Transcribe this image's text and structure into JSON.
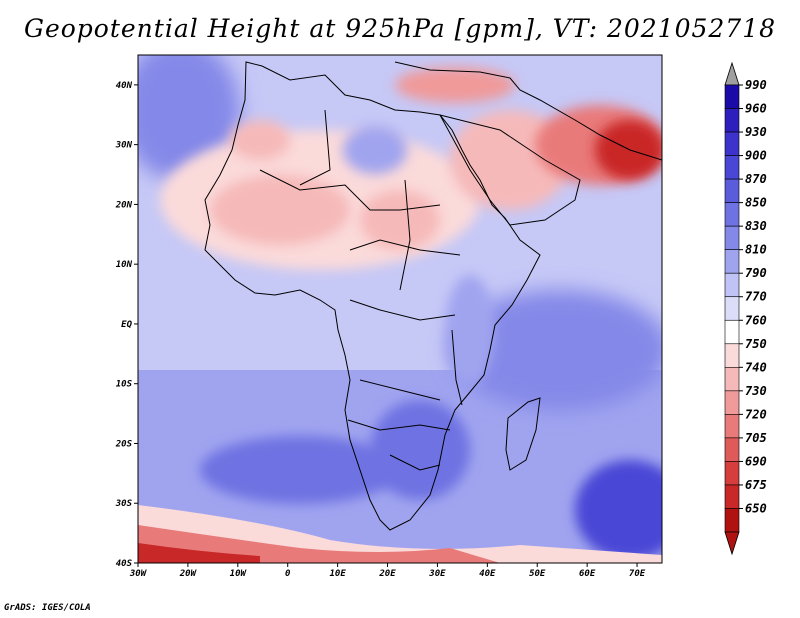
{
  "title": "Geopotential Height at 925hPa [gpm], VT: 2021052718",
  "footer": "GrADS: IGES/COLA",
  "map": {
    "lon_range": [
      -30,
      75
    ],
    "lat_range": [
      -40,
      45
    ],
    "lat_labels": [
      "40N",
      "30N",
      "20N",
      "10N",
      "EQ",
      "10S",
      "20S",
      "30S",
      "40S"
    ],
    "lat_values": [
      40,
      30,
      20,
      10,
      0,
      -10,
      -20,
      -30,
      -40
    ],
    "lon_labels": [
      "30W",
      "20W",
      "10W",
      "0",
      "10E",
      "20E",
      "30E",
      "40E",
      "50E",
      "60E",
      "70E"
    ],
    "lon_values": [
      -30,
      -20,
      -10,
      0,
      10,
      20,
      30,
      40,
      50,
      60,
      70
    ]
  },
  "colorbar": {
    "labels": [
      "990",
      "960",
      "930",
      "900",
      "870",
      "850",
      "830",
      "810",
      "790",
      "770",
      "760",
      "750",
      "740",
      "730",
      "720",
      "705",
      "690",
      "675",
      "650"
    ],
    "colors": [
      "#1a0aa8",
      "#2d1fbe",
      "#3d33cc",
      "#4a46d6",
      "#5a5cdc",
      "#6e72e2",
      "#8488e8",
      "#a0a4ef",
      "#c0c3f5",
      "#dcdef9",
      "#ffffff",
      "#fbdada",
      "#f6b9b9",
      "#f09a9a",
      "#e97a7a",
      "#e05a5a",
      "#d63d3d",
      "#c92828",
      "#b01212"
    ],
    "top_arrow_color": "#a0a0a0",
    "bottom_arrow_color": "#b01212"
  }
}
